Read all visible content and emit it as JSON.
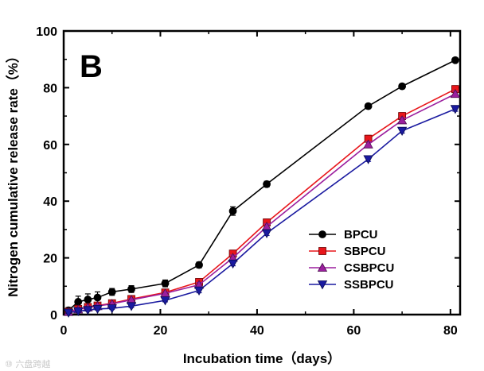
{
  "chart_data": {
    "type": "line",
    "panel_label": "B",
    "xlabel": "Incubation time（days）",
    "ylabel": "Nitrogen cumulative release rate（%）",
    "xlim": [
      0,
      82
    ],
    "ylim": [
      0,
      100
    ],
    "xticks": [
      0,
      20,
      40,
      60,
      80
    ],
    "yticks": [
      0,
      20,
      40,
      60,
      80,
      100
    ],
    "x": [
      1,
      3,
      5,
      7,
      10,
      14,
      21,
      28,
      35,
      42,
      63,
      70,
      81
    ],
    "legend_position": "lower-right",
    "series": [
      {
        "name": "BPCU",
        "color": "#000000",
        "marker": "circle",
        "values": [
          1.5,
          4.5,
          5.3,
          6.0,
          8.0,
          9.0,
          11.0,
          17.5,
          36.5,
          46.0,
          73.5,
          80.5,
          89.7
        ],
        "errors": [
          1.0,
          2.0,
          2.0,
          2.0,
          1.2,
          1.2,
          1.2,
          1.0,
          1.5,
          1.0,
          0.8,
          0.8,
          0.8
        ]
      },
      {
        "name": "SBPCU",
        "color": "#e8161b",
        "marker": "square",
        "values": [
          1.0,
          2.0,
          2.7,
          3.2,
          4.0,
          5.5,
          7.8,
          11.5,
          21.5,
          32.5,
          62.0,
          70.0,
          79.5
        ],
        "errors": [
          0.5,
          0.5,
          0.5,
          0.5,
          0.8,
          0.8,
          0.8,
          1.0,
          1.2,
          1.2,
          1.2,
          1.2,
          1.2
        ]
      },
      {
        "name": "CSBPCU",
        "color": "#9b1f9e",
        "marker": "triangle-up",
        "values": [
          0.9,
          1.8,
          2.5,
          3.0,
          3.8,
          5.2,
          7.5,
          10.5,
          20.0,
          31.0,
          60.0,
          68.5,
          77.8
        ],
        "errors": [
          0.5,
          0.5,
          0.5,
          0.5,
          0.5,
          0.5,
          0.5,
          0.8,
          1.0,
          1.0,
          1.0,
          1.0,
          1.0
        ]
      },
      {
        "name": "SSBPCU",
        "color": "#1a1aa0",
        "marker": "triangle-down",
        "values": [
          0.7,
          1.2,
          1.6,
          2.0,
          2.2,
          3.0,
          5.0,
          8.5,
          18.0,
          28.7,
          54.8,
          64.8,
          72.5
        ],
        "errors": [
          0.4,
          0.4,
          0.4,
          0.4,
          0.4,
          0.5,
          0.5,
          0.8,
          0.8,
          0.8,
          0.8,
          0.8,
          0.8
        ]
      }
    ]
  },
  "watermark": "⑩ 六盘跨越"
}
